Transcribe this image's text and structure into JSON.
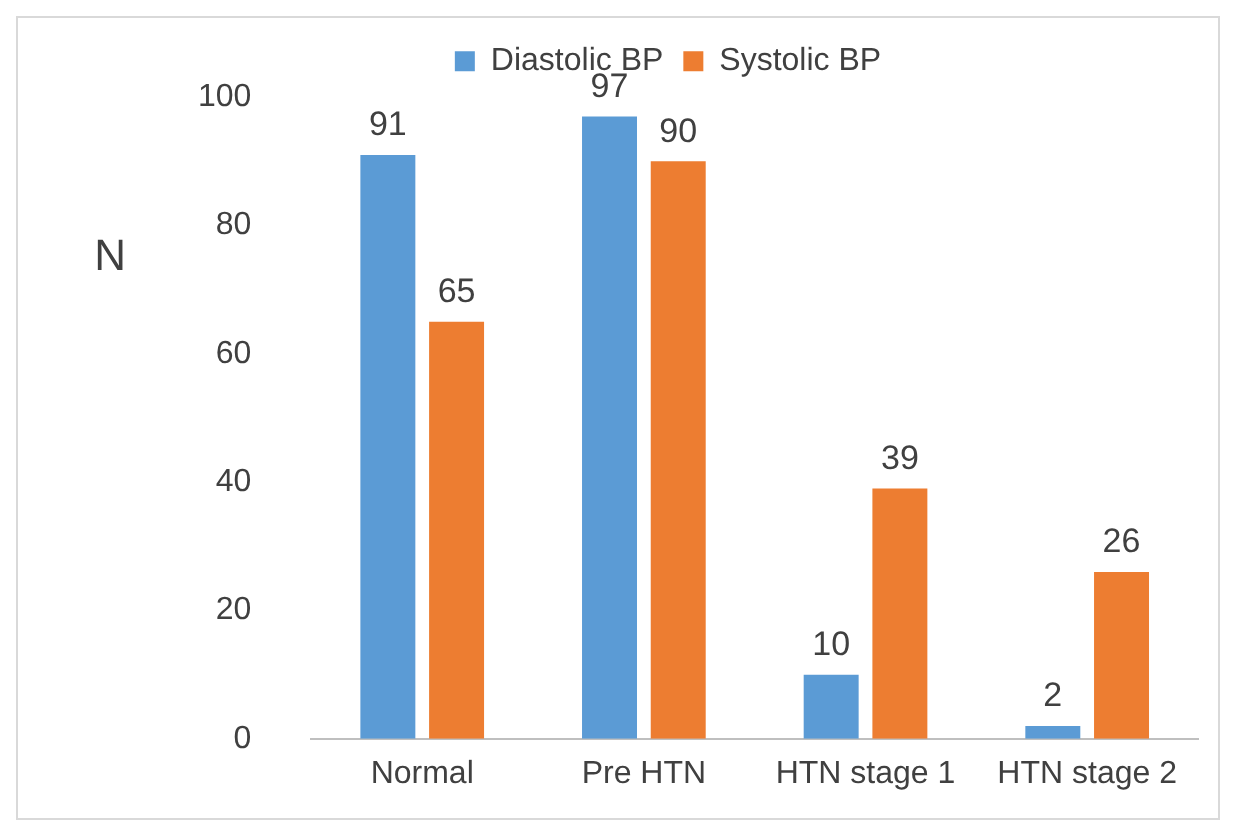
{
  "chart_data": {
    "type": "bar",
    "ylabel": "N",
    "categories": [
      "Normal",
      "Pre HTN",
      "HTN stage 1",
      "HTN stage 2"
    ],
    "series": [
      {
        "name": "Diastolic BP",
        "color": "#5b9bd5",
        "values": [
          91,
          97,
          10,
          2
        ]
      },
      {
        "name": "Systolic BP",
        "color": "#ed7d31",
        "values": [
          65,
          90,
          39,
          26
        ]
      }
    ],
    "ylim": [
      0,
      100
    ],
    "yticks": [
      0,
      20,
      40,
      60,
      80,
      100
    ],
    "grid": false,
    "legend": "top",
    "data_labels": true
  }
}
